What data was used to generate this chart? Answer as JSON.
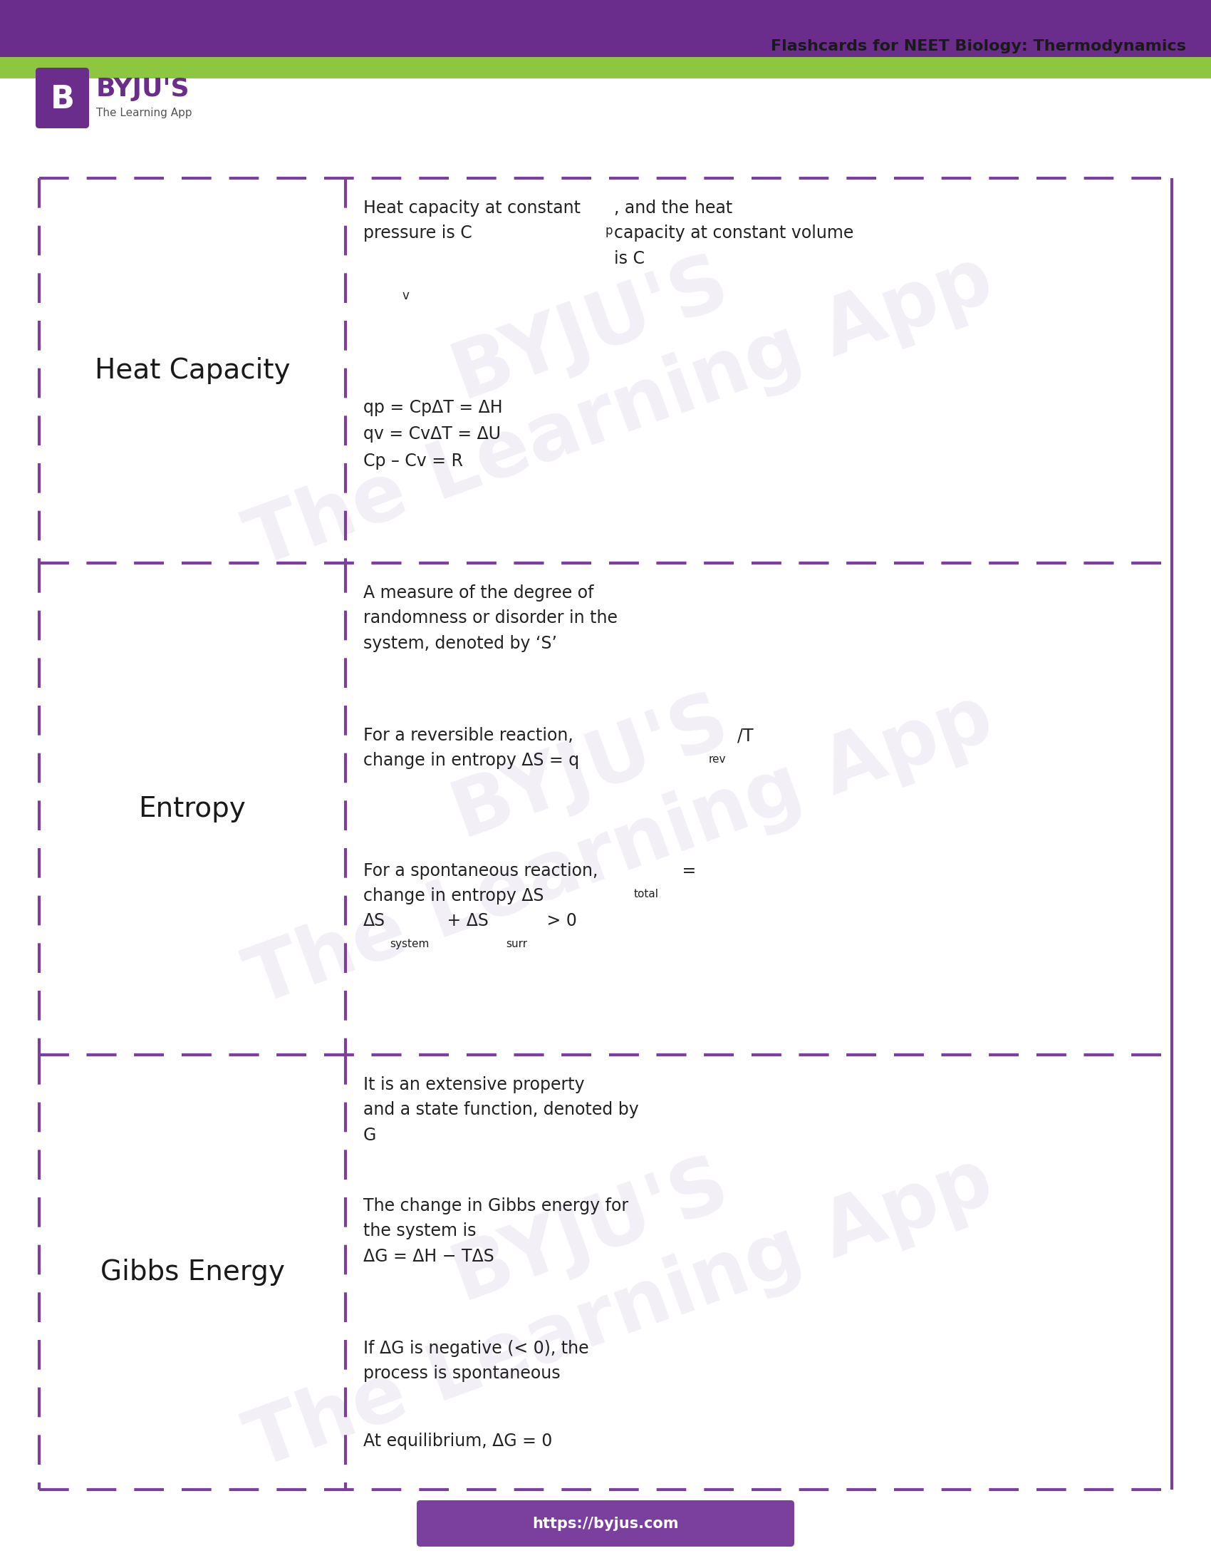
{
  "title": "Flashcards for NEET Biology: Thermodynamics",
  "header_purple": "#6B2D8B",
  "header_green": "#8DC63F",
  "purple_color": "#7B3F9E",
  "dashed_color": "#7B3F9E",
  "bg_color": "#FFFFFF",
  "footer_color": "#7B3F9E",
  "footer_text": "https://byjus.com",
  "card1_term": "Heat Capacity",
  "card2_term": "Entropy",
  "card3_term": "Gibbs Energy",
  "card1_def_para1": "Heat capacity at constant\npressure is Cp, and the heat\ncapacity at constant volume\nis Cv",
  "card1_def_para2": "qp = CpΔT = ΔH\nqv = CvΔT = ΔU\nCp – Cv = R",
  "card2_def_para1": "A measure of the degree of\nrandomness or disorder in the\nsystem, denoted by ‘S’",
  "card2_def_para2": "For a reversible reaction,\nchange in entropy ΔS = qrev/T",
  "card2_def_para3": "For a spontaneous reaction,\nchange in entropy ΔStotal =\nΔSsystem + ΔSsurr > 0",
  "card3_def_para1": "It is an extensive property\nand a state function, denoted by\nG",
  "card3_def_para2": "The change in Gibbs energy for\nthe system is\nΔG = ΔH − TΔS",
  "card3_def_para3": "If ΔG is negative (< 0), the\nprocess is spontaneous",
  "card3_def_para4": "At equilibrium, ΔG = 0",
  "watermark_text": "BYJU'S\nThe Learning App"
}
